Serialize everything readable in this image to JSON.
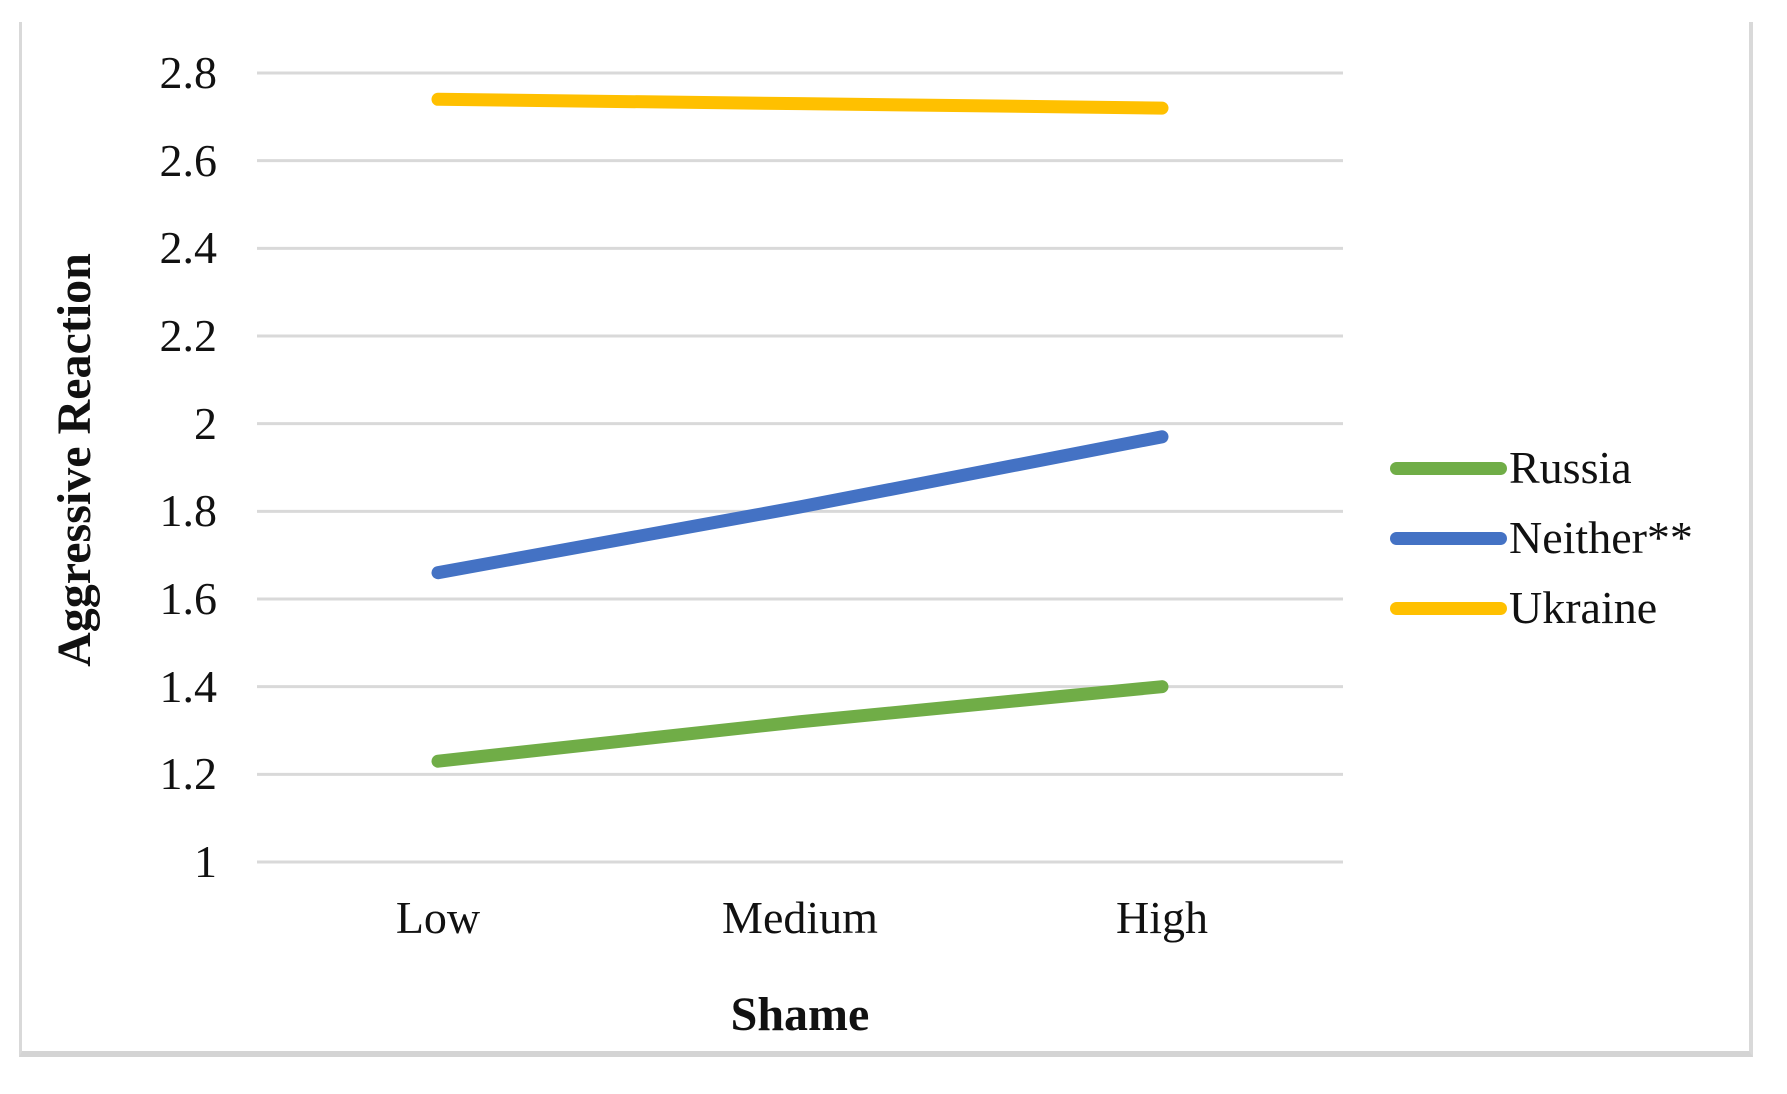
{
  "figure": {
    "y_axis_title": "Aggressive Reaction",
    "x_axis_title": "Shame"
  },
  "chart_data": {
    "type": "line",
    "title": "",
    "xlabel": "Shame",
    "ylabel": "Aggressive Reaction",
    "categories": [
      "Low",
      "Medium",
      "High"
    ],
    "series": [
      {
        "name": "Russia",
        "color": "#70AD47",
        "values": [
          1.23,
          1.32,
          1.4
        ]
      },
      {
        "name": "Neither**",
        "color": "#4472C4",
        "values": [
          1.66,
          1.81,
          1.97
        ]
      },
      {
        "name": "Ukraine",
        "color": "#FFC000",
        "values": [
          2.74,
          2.73,
          2.72
        ]
      }
    ],
    "ylim": [
      1,
      2.8
    ],
    "yticks": [
      1,
      1.2,
      1.4,
      1.6,
      1.8,
      2,
      2.2,
      2.4,
      2.6,
      2.8
    ],
    "grid": true,
    "gridline_color": "#D9D9D9",
    "line_width": 13,
    "legend_position": "right",
    "text_color": "#111111"
  }
}
